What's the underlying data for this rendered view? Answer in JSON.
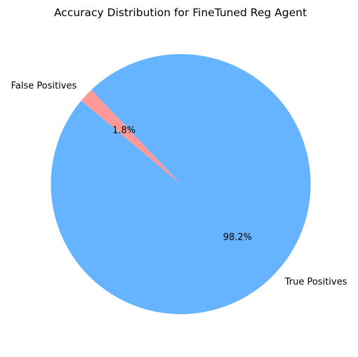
{
  "chart_data": {
    "type": "pie",
    "title": "Accuracy Distribution for FineTuned Reg Agent",
    "slices": [
      {
        "label": "True Positives",
        "value": 98.2,
        "display": "98.2%",
        "color": "#66b3ff"
      },
      {
        "label": "False Positives",
        "value": 1.8,
        "display": "1.8%",
        "color": "#ff9999"
      }
    ],
    "legend": "none"
  }
}
